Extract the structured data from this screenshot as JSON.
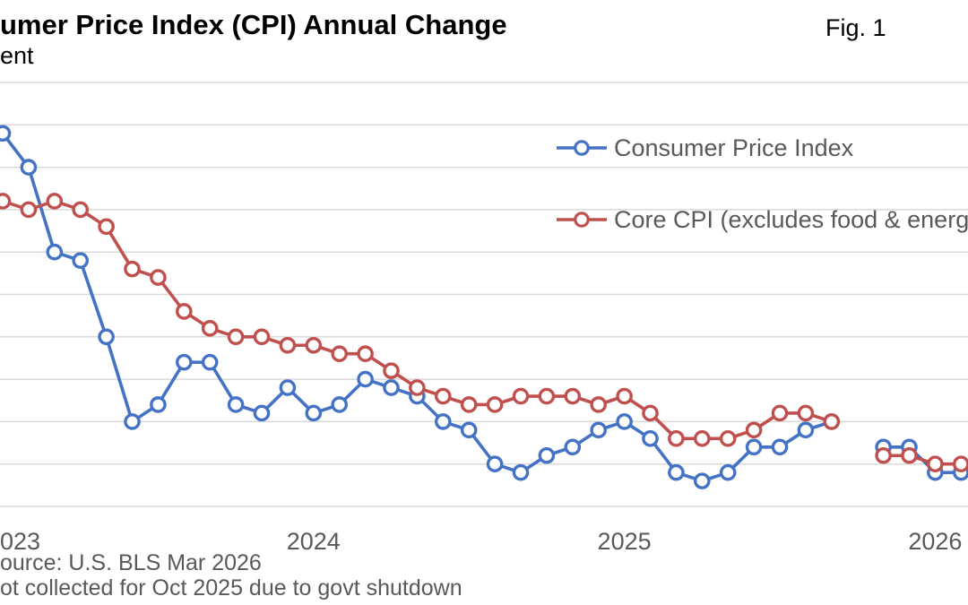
{
  "header": {
    "title": "umer Price Index (CPI) Annual Change",
    "subtitle": "ent",
    "figure_label": "Fig. 1"
  },
  "legend": {
    "items": [
      {
        "label": "Consumer Price Index",
        "color": "#4472C4"
      },
      {
        "label": "Core CPI (excludes food & energy)",
        "color": "#C0504D"
      }
    ]
  },
  "footer": {
    "source": "ource: U.S. BLS Mar 2026",
    "note": "ot collected for Oct 2025 due to govt shutdown"
  },
  "colors": {
    "cpi_blue": "#4472C4",
    "core_red": "#C0504D",
    "gridline": "#D9D9D9",
    "text_gray": "#595959",
    "text_black": "#000000",
    "marker_fill": "#FFFFFF"
  },
  "chart_data": {
    "type": "line",
    "title": "Consumer Price Index (CPI) Annual Change",
    "ylabel": "Percent",
    "ylim": [
      2.0,
      7.0
    ],
    "grid_step": 0.5,
    "grid_on": true,
    "legend_position": "inside-top-right",
    "gap_note": "Oct 2025 value missing for both series (not collected due to govt shutdown)",
    "x": [
      "2023-01",
      "2023-02",
      "2023-03",
      "2023-04",
      "2023-05",
      "2023-06",
      "2023-07",
      "2023-08",
      "2023-09",
      "2023-10",
      "2023-11",
      "2023-12",
      "2024-01",
      "2024-02",
      "2024-03",
      "2024-04",
      "2024-05",
      "2024-06",
      "2024-07",
      "2024-08",
      "2024-09",
      "2024-10",
      "2024-11",
      "2024-12",
      "2025-01",
      "2025-02",
      "2025-03",
      "2025-04",
      "2025-05",
      "2025-06",
      "2025-07",
      "2025-08",
      "2025-09",
      "2025-10",
      "2025-11",
      "2025-12",
      "2026-01",
      "2026-02"
    ],
    "x_tick_labels": [
      {
        "label": "023",
        "tick_index": 0,
        "anchor": "start"
      },
      {
        "label": "2024",
        "tick_index": 12,
        "anchor": "middle"
      },
      {
        "label": "2025",
        "tick_index": 24,
        "anchor": "middle"
      },
      {
        "label": "2026",
        "tick_index": 36,
        "anchor": "middle"
      }
    ],
    "series": [
      {
        "name": "Consumer Price Index",
        "color": "#4472C4",
        "values": [
          6.4,
          6.0,
          5.0,
          4.9,
          4.0,
          3.0,
          3.2,
          3.7,
          3.7,
          3.2,
          3.1,
          3.4,
          3.1,
          3.2,
          3.5,
          3.4,
          3.3,
          3.0,
          2.9,
          2.5,
          2.4,
          2.6,
          2.7,
          2.9,
          3.0,
          2.8,
          2.4,
          2.3,
          2.4,
          2.7,
          2.7,
          2.9,
          3.0,
          null,
          2.7,
          2.7,
          2.4,
          2.4
        ]
      },
      {
        "name": "Core CPI (excludes food & energy)",
        "color": "#C0504D",
        "values": [
          5.6,
          5.5,
          5.6,
          5.5,
          5.3,
          4.8,
          4.7,
          4.3,
          4.1,
          4.0,
          4.0,
          3.9,
          3.9,
          3.8,
          3.8,
          3.6,
          3.4,
          3.3,
          3.2,
          3.2,
          3.3,
          3.3,
          3.3,
          3.2,
          3.3,
          3.1,
          2.8,
          2.8,
          2.8,
          2.9,
          3.1,
          3.1,
          3.0,
          null,
          2.6,
          2.6,
          2.5,
          2.5
        ]
      }
    ]
  }
}
